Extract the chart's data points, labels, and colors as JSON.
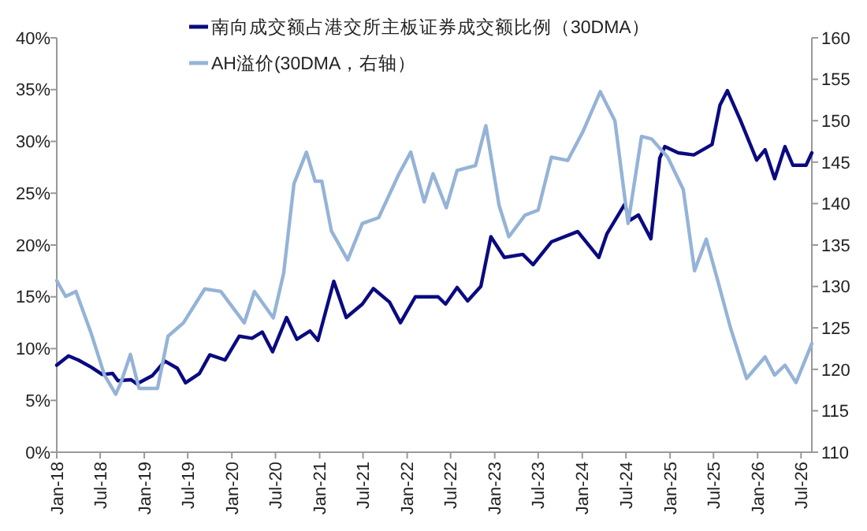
{
  "chart_data": {
    "type": "line",
    "xlim": [
      "2018-01-01",
      "2026-08-15"
    ],
    "xticks": [
      {
        "value": "2018-01-01",
        "label": "Jan-18"
      },
      {
        "value": "2018-07-01",
        "label": "Jul-18"
      },
      {
        "value": "2019-01-01",
        "label": "Jan-19"
      },
      {
        "value": "2019-07-01",
        "label": "Jul-19"
      },
      {
        "value": "2020-01-01",
        "label": "Jan-20"
      },
      {
        "value": "2020-07-01",
        "label": "Jul-20"
      },
      {
        "value": "2021-01-01",
        "label": "Jan-21"
      },
      {
        "value": "2021-07-01",
        "label": "Jul-21"
      },
      {
        "value": "2022-01-01",
        "label": "Jan-22"
      },
      {
        "value": "2022-07-01",
        "label": "Jul-22"
      },
      {
        "value": "2023-01-01",
        "label": "Jan-23"
      },
      {
        "value": "2023-07-01",
        "label": "Jul-23"
      },
      {
        "value": "2024-01-01",
        "label": "Jan-24"
      },
      {
        "value": "2024-07-01",
        "label": "Jul-24"
      },
      {
        "value": "2025-01-01",
        "label": "Jan-25"
      },
      {
        "value": "2025-07-01",
        "label": "Jul-25"
      },
      {
        "value": "2026-01-01",
        "label": "Jan-26"
      },
      {
        "value": "2026-07-01",
        "label": "Jul-26"
      }
    ],
    "ylim": [
      0,
      40
    ],
    "yticks": [
      {
        "value": 0,
        "label": "0%"
      },
      {
        "value": 5,
        "label": "5%"
      },
      {
        "value": 10,
        "label": "10%"
      },
      {
        "value": 15,
        "label": "15%"
      },
      {
        "value": 20,
        "label": "20%"
      },
      {
        "value": 25,
        "label": "25%"
      },
      {
        "value": 30,
        "label": "30%"
      },
      {
        "value": 35,
        "label": "35%"
      },
      {
        "value": 40,
        "label": "40%"
      }
    ],
    "y2lim": [
      110,
      160
    ],
    "y2ticks": [
      110,
      115,
      120,
      125,
      130,
      135,
      140,
      145,
      150,
      155,
      160
    ],
    "grid": false,
    "legend": "top",
    "marker": "none",
    "line_style": "solid",
    "series": [
      {
        "name": "南向成交额占港交所主板证券成交额比例（30DMA）",
        "color": "#0a0a80",
        "axis": "y",
        "x": [
          "2018-01-01",
          "2018-02-19",
          "2018-04-01",
          "2018-05-25",
          "2018-07-10",
          "2018-08-22",
          "2018-09-13",
          "2018-11-07",
          "2018-12-01",
          "2019-02-04",
          "2019-03-28",
          "2019-05-19",
          "2019-06-22",
          "2019-08-19",
          "2019-10-01",
          "2019-12-04",
          "2020-02-01",
          "2020-03-25",
          "2020-05-07",
          "2020-06-19",
          "2020-08-16",
          "2020-09-28",
          "2020-11-22",
          "2020-12-25",
          "2021-03-01",
          "2021-04-22",
          "2021-06-28",
          "2021-08-13",
          "2021-10-19",
          "2021-12-04",
          "2022-02-04",
          "2022-05-10",
          "2022-06-10",
          "2022-07-28",
          "2022-09-10",
          "2022-11-04",
          "2022-12-16",
          "2023-02-10",
          "2023-04-28",
          "2023-06-10",
          "2023-08-25",
          "2023-12-13",
          "2024-03-10",
          "2024-04-13",
          "2024-06-25",
          "2024-07-19",
          "2024-08-22",
          "2024-10-13",
          "2024-11-19",
          "2024-12-10",
          "2025-02-04",
          "2025-04-10",
          "2025-06-25",
          "2025-07-28",
          "2025-08-28",
          "2025-10-22",
          "2025-12-28",
          "2026-02-01",
          "2026-03-13",
          "2026-04-25",
          "2026-05-28",
          "2026-07-22",
          "2026-08-15"
        ],
        "values": [
          8.4,
          9.3,
          8.9,
          8.2,
          7.5,
          7.6,
          6.9,
          7.0,
          6.6,
          7.4,
          8.8,
          8.1,
          6.7,
          7.6,
          9.4,
          8.9,
          11.2,
          11.0,
          11.6,
          9.7,
          13.0,
          10.9,
          11.7,
          10.8,
          16.5,
          13.0,
          14.3,
          15.8,
          14.5,
          12.5,
          15.0,
          15.0,
          14.3,
          15.9,
          14.6,
          16.0,
          20.8,
          18.8,
          19.1,
          18.1,
          20.3,
          21.3,
          18.8,
          21.1,
          23.9,
          22.4,
          22.9,
          20.6,
          28.4,
          29.5,
          28.9,
          28.7,
          29.7,
          33.5,
          34.9,
          32.0,
          28.2,
          29.2,
          26.4,
          29.5,
          27.7,
          27.7,
          28.9
        ]
      },
      {
        "name": "AH溢价(30DMA，右轴）",
        "color": "#95b3d7",
        "axis": "y2",
        "x": [
          "2018-01-01",
          "2018-02-07",
          "2018-03-22",
          "2018-05-25",
          "2018-07-19",
          "2018-09-04",
          "2018-09-28",
          "2018-11-04",
          "2018-12-10",
          "2019-02-25",
          "2019-04-10",
          "2019-06-13",
          "2019-09-10",
          "2019-11-16",
          "2020-02-22",
          "2020-04-04",
          "2020-06-22",
          "2020-08-04",
          "2020-09-16",
          "2020-11-07",
          "2020-12-13",
          "2021-01-10",
          "2021-02-19",
          "2021-04-28",
          "2021-06-28",
          "2021-09-04",
          "2021-11-28",
          "2022-01-16",
          "2022-03-13",
          "2022-04-19",
          "2022-06-13",
          "2022-07-28",
          "2022-10-13",
          "2022-11-25",
          "2023-01-19",
          "2023-03-01",
          "2023-05-07",
          "2023-07-01",
          "2023-08-25",
          "2023-11-01",
          "2024-01-04",
          "2024-03-16",
          "2024-05-16",
          "2024-07-10",
          "2024-09-04",
          "2024-10-16",
          "2024-12-22",
          "2025-02-25",
          "2025-04-13",
          "2025-06-01",
          "2025-07-16",
          "2025-09-10",
          "2025-11-16",
          "2026-02-01",
          "2026-03-13",
          "2026-04-25",
          "2026-06-10",
          "2026-08-15"
        ],
        "values": [
          130.7,
          128.8,
          129.4,
          124.3,
          119.3,
          117.0,
          118.6,
          121.8,
          117.7,
          117.7,
          124.0,
          125.6,
          129.7,
          129.4,
          125.6,
          129.4,
          126.2,
          131.6,
          142.4,
          146.2,
          142.7,
          142.7,
          136.7,
          133.2,
          137.6,
          138.3,
          143.6,
          146.2,
          140.2,
          143.6,
          139.5,
          144.0,
          144.6,
          149.4,
          139.8,
          136.0,
          138.6,
          139.2,
          145.6,
          145.2,
          148.7,
          153.5,
          150.0,
          137.6,
          148.1,
          147.8,
          145.6,
          141.7,
          131.9,
          135.7,
          131.0,
          125.0,
          118.9,
          121.5,
          119.3,
          120.5,
          118.4,
          123.1
        ]
      }
    ]
  }
}
